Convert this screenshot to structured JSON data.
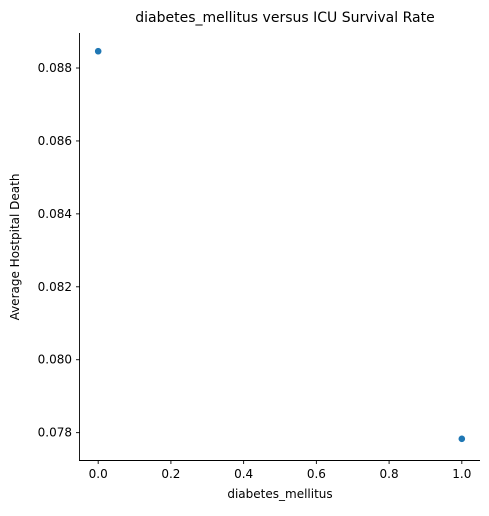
{
  "chart_data": {
    "type": "scatter",
    "title": "diabetes_mellitus versus ICU Survival Rate",
    "xlabel": "diabetes_mellitus",
    "ylabel": "Average Hostpital Death",
    "xlim": [
      -0.05,
      1.05
    ],
    "ylim": [
      0.07725,
      0.08896
    ],
    "xticks": [
      0.0,
      0.2,
      0.4,
      0.6,
      0.8,
      1.0
    ],
    "xtick_labels": [
      "0.0",
      "0.2",
      "0.4",
      "0.6",
      "0.8",
      "1.0"
    ],
    "yticks": [
      0.078,
      0.08,
      0.082,
      0.084,
      0.086,
      0.088
    ],
    "ytick_labels": [
      "0.078",
      "0.080",
      "0.082",
      "0.084",
      "0.086",
      "0.088"
    ],
    "grid": false,
    "series": [
      {
        "x": [
          0.0,
          1.0
        ],
        "y": [
          0.08846,
          0.07783
        ],
        "color": "#1f77b4"
      }
    ]
  }
}
